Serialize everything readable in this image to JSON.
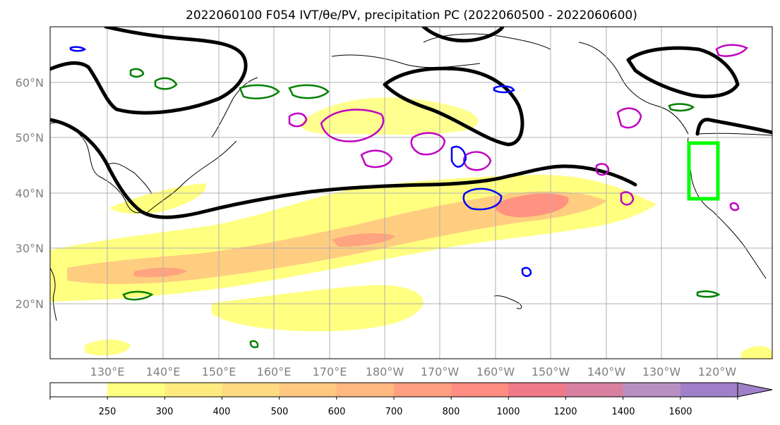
{
  "title": "2022060100 F054 IVT/θe/PV, precipitation PC (2022060500 - 2022060600)",
  "map": {
    "lat_labels": [
      "60°N",
      "50°N",
      "40°N",
      "30°N",
      "20°N"
    ],
    "lon_labels": [
      "130°E",
      "140°E",
      "150°E",
      "160°E",
      "170°E",
      "180°W",
      "170°W",
      "160°W",
      "150°W",
      "140°W",
      "130°W",
      "120°W"
    ],
    "highlight_box_color": "#00ff00",
    "contour_colors": {
      "theta_e": "#000000",
      "pv_green": "#008000",
      "pv_blue": "#0000ff",
      "pv_magenta": "#c000c0"
    }
  },
  "colorbar": {
    "ticks": [
      "250",
      "300",
      "400",
      "500",
      "600",
      "700",
      "800",
      "1000",
      "1200",
      "1400",
      "1600"
    ],
    "colors": [
      "#ffffff",
      "#ffff80",
      "#ffeb80",
      "#ffda80",
      "#ffc880",
      "#ffb880",
      "#ff9f80",
      "#ff8c80",
      "#f07a88",
      "#d880a0",
      "#b890c0",
      "#a080c8"
    ]
  }
}
